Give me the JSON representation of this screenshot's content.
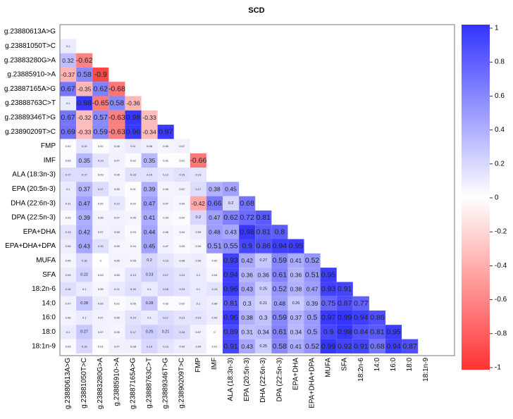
{
  "chart_data": {
    "type": "heatmap",
    "title": "SCD",
    "labels": [
      "g.23880613A>G",
      "g.23881050T>C",
      "g.23883280G>A",
      "g.23885910->A",
      "g.23887165A>G",
      "g.23888763C>T",
      "g.23889346T>G",
      "g.23890209T>C",
      "FMP",
      "IMF",
      "ALA (18:3n-3)",
      "EPA (20:5n-3)",
      "DHA (22:6n-3)",
      "DPA (22:5n-3)",
      "EPA+DHA",
      "EPA+DHA+DPA",
      "MUFA",
      "SFA",
      "18:2n-6",
      "14:0",
      "16:0",
      "18:0",
      "18:1n-9"
    ],
    "matrix": [
      [],
      [
        0.1
      ],
      [
        0.32,
        -0.62
      ],
      [
        -0.37,
        0.58,
        -0.9
      ],
      [
        0.67,
        -0.35,
        0.62,
        -0.68
      ],
      [
        0.1,
        0.98,
        -0.65,
        0.58,
        -0.36
      ],
      [
        0.67,
        -0.32,
        0.57,
        -0.63,
        0.98,
        -0.33
      ],
      [
        0.69,
        -0.33,
        0.59,
        -0.63,
        0.96,
        -0.34,
        0.97
      ],
      [
        0.01,
        0.13,
        0.01,
        0.06,
        0.11,
        0.08,
        0.05,
        0.07
      ],
      [
        0.03,
        0.35,
        0.13,
        0.07,
        0.02,
        0.35,
        0.01,
        0.01,
        -0.66
      ],
      [
        0.17,
        0.17,
        0.03,
        0.06,
        0.15,
        0.15,
        0.12,
        0.15,
        0.13
      ],
      [
        0.1,
        0.37,
        0.17,
        0.06,
        0.01,
        0.39,
        0.05,
        0.07,
        0.17,
        0.38,
        0.45
      ],
      [
        0.11,
        0.47,
        0.02,
        0.12,
        0.02,
        0.47,
        0.07,
        0.04,
        -0.42,
        0.66,
        0.2,
        0.68
      ],
      [
        0.03,
        0.39,
        0.06,
        0.07,
        0.05,
        0.41,
        0.04,
        0.02,
        0.2,
        0.47,
        0.62,
        0.72,
        0.81
      ],
      [
        0.13,
        0.42,
        0.07,
        0.08,
        0.03,
        0.44,
        0.06,
        0.04,
        0.09,
        0.48,
        0.43,
        0.98,
        0.81,
        0.8
      ],
      [
        0.09,
        0.43,
        0.15,
        0.05,
        0.04,
        0.45,
        0.07,
        0.03,
        0.05,
        0.51,
        0.55,
        0.9,
        0.86,
        0.94,
        0.95
      ],
      [
        0.05,
        0.18,
        0.0,
        0.06,
        0.05,
        0.2,
        0.13,
        0.08,
        0.09,
        0.02,
        0.93,
        0.42,
        0.27,
        0.59,
        0.41,
        0.52
      ],
      [
        0.09,
        0.22,
        0.03,
        0.05,
        0.13,
        0.23,
        0.17,
        0.13,
        0.1,
        0.04,
        0.94,
        0.36,
        0.36,
        0.61,
        0.36,
        0.51,
        0.95
      ],
      [
        0.16,
        0.1,
        0.05,
        0.11,
        0.16,
        0.1,
        0.18,
        0.15,
        0.1,
        0.13,
        0.96,
        0.43,
        0.25,
        0.52,
        0.38,
        0.47,
        0.93,
        0.91
      ],
      [
        0.07,
        0.28,
        0.09,
        0.02,
        0.05,
        0.28,
        0.02,
        0.02,
        0.1,
        0.08,
        0.81,
        0.3,
        0.21,
        0.48,
        0.26,
        0.39,
        0.75,
        0.87,
        0.77
      ],
      [
        0.06,
        0.1,
        0.07,
        0.06,
        0.14,
        0.1,
        0.17,
        0.13,
        0.13,
        0.09,
        0.96,
        0.38,
        0.3,
        0.59,
        0.37,
        0.5,
        0.97,
        0.99,
        0.94,
        0.86
      ],
      [
        0.1,
        0.27,
        0.07,
        0.05,
        0.17,
        0.25,
        0.21,
        0.18,
        0.07,
        0.0,
        0.89,
        0.31,
        0.34,
        0.61,
        0.34,
        0.5,
        0.9,
        0.98,
        0.84,
        0.81,
        0.95
      ],
      [
        0.03,
        0.19,
        0.01,
        0.07,
        0.08,
        0.19,
        0.13,
        0.09,
        0.09,
        0.01,
        0.91,
        0.43,
        0.25,
        0.58,
        0.41,
        0.52,
        0.99,
        0.92,
        0.91,
        0.68,
        0.94,
        0.87
      ]
    ],
    "colorbar": {
      "min": -1,
      "max": 1,
      "ticks": [
        1,
        0.8,
        0.6,
        0.4,
        0.2,
        0,
        -0.2,
        -0.4,
        -0.6,
        -0.8,
        -1
      ],
      "tick_labels": [
        "1",
        "0.8",
        "0.6",
        "0.4",
        "0.2",
        "0",
        "-0.2",
        "-0.4",
        "-0.6",
        "-0.8",
        "-1"
      ],
      "colors": {
        "negative": "#ff3333",
        "zero": "#ffffff",
        "positive": "#3333ff"
      }
    }
  }
}
